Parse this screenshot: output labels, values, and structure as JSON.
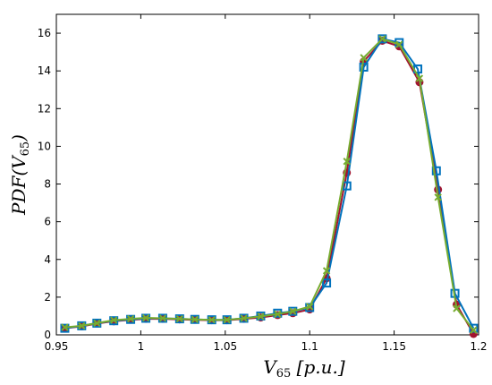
{
  "chart_data": {
    "type": "line",
    "xlabel": "V65 [p.u.]",
    "ylabel": "PDF(V65)",
    "xlim": [
      0.95,
      1.2
    ],
    "ylim": [
      0,
      17
    ],
    "x_ticks": [
      "0.95",
      "1",
      "1.05",
      "1.1",
      "1.15",
      "1.2"
    ],
    "y_ticks": [
      "0",
      "2",
      "4",
      "6",
      "8",
      "10",
      "12",
      "14",
      "16"
    ],
    "grid": false,
    "legend": "none",
    "series": [
      {
        "marker": "circle",
        "color": "#a2142f",
        "points": [
          [
            0.955,
            0.35
          ],
          [
            0.965,
            0.45
          ],
          [
            0.974,
            0.6
          ],
          [
            0.984,
            0.72
          ],
          [
            0.994,
            0.8
          ],
          [
            1.003,
            0.85
          ],
          [
            1.013,
            0.85
          ],
          [
            1.023,
            0.82
          ],
          [
            1.032,
            0.8
          ],
          [
            1.042,
            0.78
          ],
          [
            1.051,
            0.78
          ],
          [
            1.061,
            0.85
          ],
          [
            1.071,
            0.92
          ],
          [
            1.081,
            1.05
          ],
          [
            1.09,
            1.15
          ],
          [
            1.1,
            1.35
          ],
          [
            1.11,
            3.0
          ],
          [
            1.122,
            8.6
          ],
          [
            1.132,
            14.5
          ],
          [
            1.143,
            15.6
          ],
          [
            1.153,
            15.3
          ],
          [
            1.165,
            13.4
          ],
          [
            1.176,
            7.7
          ],
          [
            1.187,
            1.6
          ],
          [
            1.197,
            0.05
          ]
        ]
      },
      {
        "marker": "square",
        "color": "#0072bd",
        "points": [
          [
            0.955,
            0.35
          ],
          [
            0.965,
            0.48
          ],
          [
            0.974,
            0.62
          ],
          [
            0.984,
            0.75
          ],
          [
            0.994,
            0.82
          ],
          [
            1.003,
            0.88
          ],
          [
            1.013,
            0.88
          ],
          [
            1.023,
            0.85
          ],
          [
            1.032,
            0.82
          ],
          [
            1.042,
            0.8
          ],
          [
            1.051,
            0.8
          ],
          [
            1.061,
            0.88
          ],
          [
            1.071,
            1.0
          ],
          [
            1.081,
            1.15
          ],
          [
            1.09,
            1.25
          ],
          [
            1.1,
            1.45
          ],
          [
            1.11,
            2.75
          ],
          [
            1.122,
            7.9
          ],
          [
            1.132,
            14.2
          ],
          [
            1.143,
            15.7
          ],
          [
            1.153,
            15.5
          ],
          [
            1.164,
            14.1
          ],
          [
            1.175,
            8.7
          ],
          [
            1.186,
            2.2
          ],
          [
            1.197,
            0.35
          ]
        ]
      },
      {
        "marker": "x",
        "color": "#77ac30",
        "points": [
          [
            0.955,
            0.4
          ],
          [
            0.965,
            0.48
          ],
          [
            0.974,
            0.62
          ],
          [
            0.984,
            0.78
          ],
          [
            0.994,
            0.85
          ],
          [
            1.003,
            0.9
          ],
          [
            1.013,
            0.88
          ],
          [
            1.023,
            0.85
          ],
          [
            1.032,
            0.82
          ],
          [
            1.042,
            0.8
          ],
          [
            1.051,
            0.8
          ],
          [
            1.061,
            0.88
          ],
          [
            1.071,
            0.98
          ],
          [
            1.081,
            1.1
          ],
          [
            1.09,
            1.25
          ],
          [
            1.1,
            1.5
          ],
          [
            1.11,
            3.4
          ],
          [
            1.122,
            9.2
          ],
          [
            1.132,
            14.7
          ],
          [
            1.143,
            15.7
          ],
          [
            1.153,
            15.4
          ],
          [
            1.165,
            13.6
          ],
          [
            1.176,
            7.3
          ],
          [
            1.187,
            1.4
          ],
          [
            1.197,
            0.25
          ]
        ]
      }
    ]
  }
}
